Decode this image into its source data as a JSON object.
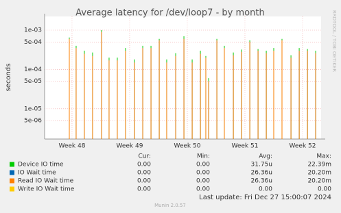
{
  "chart_data": {
    "type": "impulse",
    "title": "Average latency for /dev/loop7 - by month",
    "y_label": "seconds",
    "side_label": "RRDTOOL / TOBI OETIKER",
    "log_y": true,
    "grid": true,
    "xlim": [
      0,
      33.58
    ],
    "ylim": [
      1.7e-06,
      0.00223
    ],
    "xticks": [
      {
        "value": 3.33,
        "label": "Week 48"
      },
      {
        "value": 10.33,
        "label": "Week 49"
      },
      {
        "value": 17.33,
        "label": "Week 50"
      },
      {
        "value": 24.33,
        "label": "Week 51"
      },
      {
        "value": 31.33,
        "label": "Week 52"
      }
    ],
    "yticks": [
      {
        "value": 5e-06,
        "label": "5e-06"
      },
      {
        "value": 1e-05,
        "label": "1e-05"
      },
      {
        "value": 5e-05,
        "label": "5e-05"
      },
      {
        "value": 0.0001,
        "label": "1e-04"
      },
      {
        "value": 0.0005,
        "label": "5e-04"
      },
      {
        "value": 0.001,
        "label": "1e-03"
      }
    ],
    "x": [
      3.0,
      3.83,
      4.83,
      5.83,
      6.92,
      7.83,
      8.83,
      9.83,
      10.92,
      11.92,
      12.92,
      13.92,
      14.83,
      15.92,
      16.92,
      17.92,
      18.92,
      19.58,
      19.92,
      20.92,
      21.83,
      22.92,
      23.92,
      24.92,
      25.92,
      26.92,
      27.83,
      28.83,
      29.92,
      30.92,
      31.92,
      32.92
    ],
    "stat_headers": [
      "Cur:",
      "Min:",
      "Avg:",
      "Max:"
    ],
    "series": [
      {
        "name": "Device IO time",
        "color": "#00cc00",
        "stats": [
          "0.00",
          "0.00",
          "31.75u",
          "22.39m"
        ],
        "values": [
          0.00065,
          0.0004,
          0.0003,
          0.00027,
          0.001,
          0.0002,
          0.0002,
          0.00035,
          0.00018,
          0.0004,
          0.0004,
          0.0006,
          0.00018,
          0.00026,
          0.0007,
          0.00018,
          0.0003,
          0.00022,
          6e-05,
          0.0006,
          0.0004,
          0.00027,
          0.00032,
          0.00055,
          0.00033,
          0.0003,
          0.00035,
          0.0006,
          0.00023,
          0.00035,
          0.00033,
          0.0003
        ]
      },
      {
        "name": "IO Wait time",
        "color": "#0066b3",
        "stats": [
          "0.00",
          "0.00",
          "26.36u",
          "20.20m"
        ],
        "values": [
          0.0006,
          0.00035,
          0.00025,
          0.00022,
          0.0009,
          0.00017,
          0.00017,
          0.0003,
          0.00015,
          0.00035,
          0.00035,
          0.00055,
          0.00015,
          0.00022,
          0.0006,
          0.00015,
          0.00025,
          0.0002,
          5e-05,
          0.00055,
          0.00035,
          0.00023,
          0.00028,
          0.0005,
          0.0003,
          0.00026,
          0.0003,
          0.00055,
          0.0002,
          0.0003,
          0.0003,
          0.00026
        ]
      },
      {
        "name": "Read IO Wait time",
        "color": "#ff8000",
        "stats": [
          "0.00",
          "0.00",
          "26.36u",
          "20.20m"
        ],
        "values": [
          0.0006,
          0.00035,
          0.00025,
          0.00022,
          0.0009,
          0.00017,
          0.00017,
          0.0003,
          0.00015,
          0.00035,
          0.00035,
          0.00055,
          0.00015,
          0.00022,
          0.0006,
          0.00015,
          0.00025,
          0.0002,
          5e-05,
          0.00055,
          0.00035,
          0.00023,
          0.00028,
          0.0005,
          0.0003,
          0.00026,
          0.0003,
          0.00055,
          0.0002,
          0.0003,
          0.0003,
          0.00026
        ]
      },
      {
        "name": "Write IO Wait time",
        "color": "#ffcc00",
        "stats": [
          "0.00",
          "0.00",
          "0.00",
          "0.00"
        ],
        "values": [
          null,
          null,
          null,
          null,
          null,
          null,
          null,
          null,
          null,
          null,
          null,
          null,
          null,
          null,
          null,
          null,
          null,
          null,
          null,
          null,
          null,
          null,
          null,
          null,
          null,
          null,
          null,
          null,
          null,
          null,
          null,
          null
        ]
      }
    ],
    "last_update": "Last update: Fri Dec 27 15:00:07 2024",
    "footer": "Munin 2.0.57"
  }
}
